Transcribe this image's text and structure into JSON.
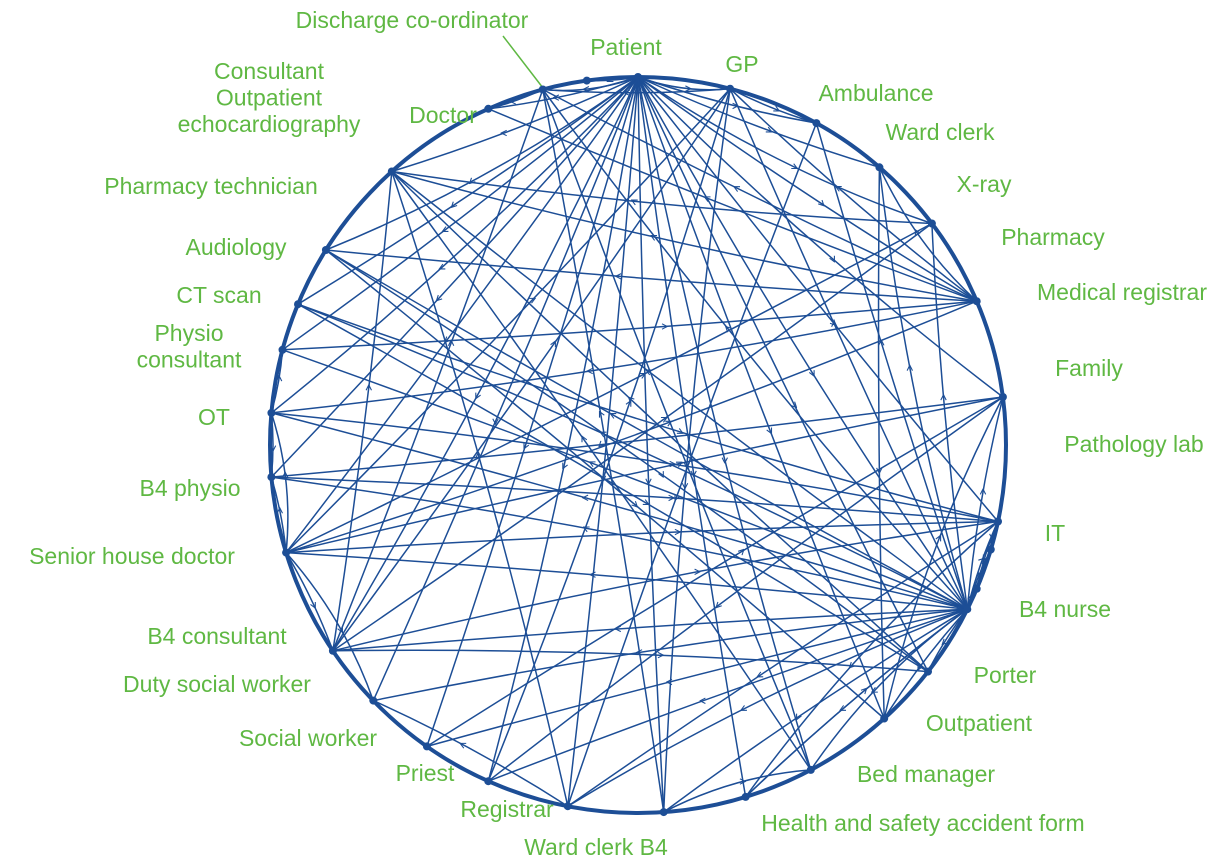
{
  "colors": {
    "line": "#1d4e96",
    "label": "#5fb843",
    "background": "#ffffff"
  },
  "nodes": [
    {
      "id": "patient",
      "label": "Patient"
    },
    {
      "id": "gp",
      "label": "GP"
    },
    {
      "id": "ambulance",
      "label": "Ambulance"
    },
    {
      "id": "ward-clerk",
      "label": "Ward clerk"
    },
    {
      "id": "x-ray",
      "label": "X-ray"
    },
    {
      "id": "pharmacy",
      "label": "Pharmacy"
    },
    {
      "id": "medical-registrar",
      "label": "Medical registrar"
    },
    {
      "id": "family",
      "label": "Family"
    },
    {
      "id": "pathology-lab",
      "label": "Pathology lab"
    },
    {
      "id": "it",
      "label": "IT"
    },
    {
      "id": "b4-nurse",
      "label": "B4 nurse"
    },
    {
      "id": "porter",
      "label": "Porter"
    },
    {
      "id": "outpatient",
      "label": "Outpatient"
    },
    {
      "id": "bed-manager",
      "label": "Bed manager"
    },
    {
      "id": "health-safety-form",
      "label": "Health and safety accident form"
    },
    {
      "id": "ward-clerk-b4",
      "label": "Ward clerk B4"
    },
    {
      "id": "registrar",
      "label": "Registrar"
    },
    {
      "id": "priest",
      "label": "Priest"
    },
    {
      "id": "social-worker",
      "label": "Social worker"
    },
    {
      "id": "duty-social-worker",
      "label": "Duty social worker"
    },
    {
      "id": "b4-consultant",
      "label": "B4 consultant"
    },
    {
      "id": "senior-house-doctor",
      "label": "Senior house doctor"
    },
    {
      "id": "b4-physio",
      "label": "B4 physio"
    },
    {
      "id": "ot",
      "label": "OT"
    },
    {
      "id": "physio-consultant",
      "label": [
        "Physio",
        "consultant"
      ]
    },
    {
      "id": "ct-scan",
      "label": "CT scan"
    },
    {
      "id": "audiology",
      "label": "Audiology"
    },
    {
      "id": "pharmacy-technician",
      "label": "Pharmacy technician"
    },
    {
      "id": "consultant-outpatient-echo",
      "label": [
        "Consultant",
        "Outpatient",
        "echocardiography"
      ]
    },
    {
      "id": "doctor",
      "label": "Doctor"
    },
    {
      "id": "discharge-coordinator",
      "label": "Discharge co-ordinator"
    }
  ],
  "edges": [
    [
      "patient",
      "gp"
    ],
    [
      "patient",
      "ambulance"
    ],
    [
      "patient",
      "ward-clerk"
    ],
    [
      "patient",
      "x-ray"
    ],
    [
      "patient",
      "pharmacy"
    ],
    [
      "patient",
      "family"
    ],
    [
      "patient",
      "b4-nurse"
    ],
    [
      "patient",
      "porter"
    ],
    [
      "patient",
      "outpatient"
    ],
    [
      "patient",
      "bed-manager"
    ],
    [
      "patient",
      "ward-clerk-b4"
    ],
    [
      "patient",
      "registrar"
    ],
    [
      "patient",
      "priest"
    ],
    [
      "patient",
      "social-worker"
    ],
    [
      "patient",
      "duty-social-worker"
    ],
    [
      "patient",
      "b4-consultant"
    ],
    [
      "patient",
      "senior-house-doctor"
    ],
    [
      "patient",
      "b4-physio"
    ],
    [
      "patient",
      "ot"
    ],
    [
      "patient",
      "physio-consultant"
    ],
    [
      "patient",
      "ct-scan"
    ],
    [
      "patient",
      "audiology"
    ],
    [
      "patient",
      "pharmacy-technician"
    ],
    [
      "patient",
      "consultant-outpatient-echo"
    ],
    [
      "patient",
      "doctor"
    ],
    [
      "patient",
      "discharge-coordinator"
    ],
    [
      "patient",
      "health-safety-form"
    ],
    [
      "patient",
      "medical-registrar"
    ],
    [
      "b4-nurse",
      "gp"
    ],
    [
      "b4-nurse",
      "ambulance"
    ],
    [
      "b4-nurse",
      "ward-clerk"
    ],
    [
      "b4-nurse",
      "family"
    ],
    [
      "b4-nurse",
      "pathology-lab"
    ],
    [
      "b4-nurse",
      "it"
    ],
    [
      "b4-nurse",
      "porter"
    ],
    [
      "b4-nurse",
      "outpatient"
    ],
    [
      "b4-nurse",
      "bed-manager"
    ],
    [
      "b4-nurse",
      "health-safety-form"
    ],
    [
      "b4-nurse",
      "ward-clerk-b4"
    ],
    [
      "b4-nurse",
      "registrar"
    ],
    [
      "b4-nurse",
      "priest"
    ],
    [
      "b4-nurse",
      "social-worker"
    ],
    [
      "b4-nurse",
      "duty-social-worker"
    ],
    [
      "b4-nurse",
      "b4-consultant"
    ],
    [
      "b4-nurse",
      "senior-house-doctor"
    ],
    [
      "b4-nurse",
      "b4-physio"
    ],
    [
      "b4-nurse",
      "ot"
    ],
    [
      "b4-nurse",
      "physio-consultant"
    ],
    [
      "b4-nurse",
      "ct-scan"
    ],
    [
      "b4-nurse",
      "audiology"
    ],
    [
      "b4-nurse",
      "pharmacy-technician"
    ],
    [
      "b4-nurse",
      "doctor"
    ],
    [
      "b4-nurse",
      "medical-registrar"
    ],
    [
      "b4-nurse",
      "x-ray"
    ],
    [
      "pharmacy",
      "pharmacy-technician"
    ],
    [
      "pharmacy",
      "doctor"
    ],
    [
      "pharmacy",
      "consultant-outpatient-echo"
    ],
    [
      "pharmacy",
      "ot"
    ],
    [
      "pharmacy",
      "audiology"
    ],
    [
      "pharmacy",
      "gp"
    ],
    [
      "pharmacy",
      "ward-clerk"
    ],
    [
      "senior-house-doctor",
      "b4-consultant"
    ],
    [
      "senior-house-doctor",
      "b4-physio"
    ],
    [
      "senior-house-doctor",
      "ot"
    ],
    [
      "senior-house-doctor",
      "x-ray"
    ],
    [
      "senior-house-doctor",
      "medical-registrar"
    ],
    [
      "senior-house-doctor",
      "pharmacy"
    ],
    [
      "senior-house-doctor",
      "gp"
    ],
    [
      "senior-house-doctor",
      "family"
    ],
    [
      "senior-house-doctor",
      "duty-social-worker"
    ],
    [
      "b4-consultant",
      "doctor"
    ],
    [
      "b4-consultant",
      "gp"
    ],
    [
      "b4-consultant",
      "family"
    ],
    [
      "b4-consultant",
      "x-ray"
    ],
    [
      "b4-consultant",
      "pharmacy-technician"
    ],
    [
      "b4-consultant",
      "porter"
    ],
    [
      "gp",
      "doctor"
    ],
    [
      "gp",
      "ambulance"
    ],
    [
      "gp",
      "ward-clerk-b4"
    ],
    [
      "ambulance",
      "registrar"
    ],
    [
      "ward-clerk",
      "outpatient"
    ],
    [
      "x-ray",
      "pharmacy-technician"
    ],
    [
      "doctor",
      "consultant-outpatient-echo"
    ],
    [
      "doctor",
      "bed-manager"
    ],
    [
      "ct-scan",
      "family"
    ],
    [
      "ct-scan",
      "porter"
    ],
    [
      "audiology",
      "outpatient"
    ],
    [
      "audiology",
      "porter"
    ],
    [
      "ot",
      "physio-consultant"
    ],
    [
      "ot",
      "b4-physio"
    ],
    [
      "ot",
      "family"
    ],
    [
      "b4-physio",
      "family"
    ],
    [
      "physio-consultant",
      "pharmacy"
    ],
    [
      "family",
      "pathology-lab"
    ],
    [
      "family",
      "it"
    ],
    [
      "family",
      "registrar"
    ],
    [
      "family",
      "health-safety-form"
    ],
    [
      "medical-registrar",
      "priest"
    ],
    [
      "medical-registrar",
      "b4-physio"
    ],
    [
      "registrar",
      "pharmacy-technician"
    ],
    [
      "registrar",
      "duty-social-worker"
    ],
    [
      "ward-clerk-b4",
      "doctor"
    ],
    [
      "ward-clerk-b4",
      "bed-manager"
    ],
    [
      "health-safety-form",
      "b4-nurse"
    ],
    [
      "social-worker",
      "medical-registrar"
    ],
    [
      "priest",
      "gp"
    ],
    [
      "porter",
      "pharmacy-technician"
    ],
    [
      "bed-manager",
      "pharmacy-technician"
    ],
    [
      "outpatient",
      "medical-registrar"
    ]
  ]
}
